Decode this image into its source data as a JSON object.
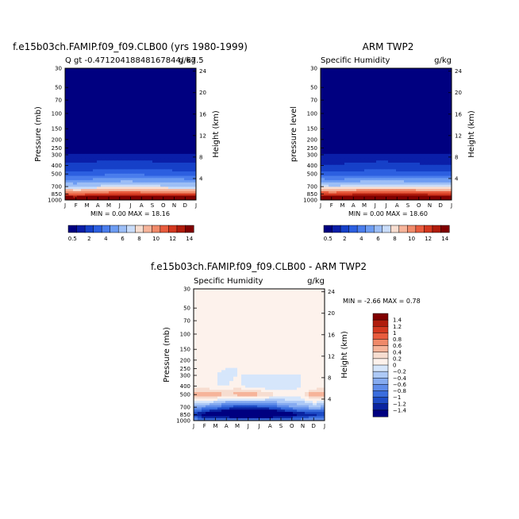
{
  "chart_data": [
    {
      "id": "model",
      "type": "heatmap",
      "title": "f.e15b03ch.FAMIP.f09_f09.CLB00 (yrs 1980-1999)",
      "subtitle_left": "Q  gt  -0.47120418848167844/ 67.5",
      "subtitle_right": "g/kg",
      "ylabel": "Pressure  (mb)",
      "y2label": "Height  (km)",
      "x_ticks": [
        "J",
        "F",
        "M",
        "A",
        "M",
        "J",
        "J",
        "A",
        "S",
        "O",
        "N",
        "D",
        "J"
      ],
      "y_ticks": [
        "30",
        "50",
        "70",
        "100",
        "150",
        "200",
        "250",
        "300",
        "400",
        "500",
        "700",
        "850",
        "1000"
      ],
      "y2_ticks": [
        "24",
        "20",
        "16",
        "12",
        "8",
        "4"
      ],
      "min_label": "MIN =",
      "min_value": "0.00",
      "max_label": "MAX =",
      "max_value": "18.16",
      "months": [
        "J",
        "F",
        "M",
        "A",
        "M",
        "J",
        "J",
        "A",
        "S",
        "O",
        "N",
        "D",
        "J"
      ],
      "pressure_levels": [
        1000,
        850,
        700,
        500,
        400,
        300,
        250,
        200,
        150,
        100,
        70,
        50,
        30
      ],
      "values_g_per_kg_approx": [
        [
          16.5,
          16.2,
          16.4,
          16.8,
          17.0,
          17.2,
          17.1,
          17.0,
          16.9,
          16.8,
          16.7,
          16.6,
          16.5
        ],
        [
          10.5,
          10.2,
          10.4,
          10.8,
          11.0,
          11.2,
          11.1,
          11.0,
          10.9,
          10.8,
          10.7,
          10.6,
          10.5
        ],
        [
          6.0,
          5.8,
          5.9,
          6.2,
          6.4,
          6.5,
          6.5,
          6.4,
          6.3,
          6.2,
          6.1,
          6.0,
          6.0
        ],
        [
          2.6,
          2.4,
          2.5,
          2.7,
          2.8,
          2.9,
          2.9,
          2.8,
          2.7,
          2.7,
          2.6,
          2.6,
          2.6
        ],
        [
          1.2,
          1.1,
          1.2,
          1.3,
          1.3,
          1.4,
          1.4,
          1.3,
          1.3,
          1.2,
          1.2,
          1.2,
          1.2
        ],
        [
          0.5,
          0.5,
          0.5,
          0.5,
          0.5,
          0.5,
          0.5,
          0.5,
          0.5,
          0.5,
          0.5,
          0.5,
          0.5
        ],
        [
          0.2,
          0.2,
          0.2,
          0.2,
          0.2,
          0.2,
          0.2,
          0.2,
          0.2,
          0.2,
          0.2,
          0.2,
          0.2
        ],
        [
          0.1,
          0.1,
          0.1,
          0.1,
          0.1,
          0.1,
          0.1,
          0.1,
          0.1,
          0.1,
          0.1,
          0.1,
          0.1
        ],
        [
          0.0,
          0.0,
          0.0,
          0.0,
          0.0,
          0.0,
          0.0,
          0.0,
          0.0,
          0.0,
          0.0,
          0.0,
          0.0
        ],
        [
          0.0,
          0.0,
          0.0,
          0.0,
          0.0,
          0.0,
          0.0,
          0.0,
          0.0,
          0.0,
          0.0,
          0.0,
          0.0
        ],
        [
          0.0,
          0.0,
          0.0,
          0.0,
          0.0,
          0.0,
          0.0,
          0.0,
          0.0,
          0.0,
          0.0,
          0.0,
          0.0
        ],
        [
          0.0,
          0.0,
          0.0,
          0.0,
          0.0,
          0.0,
          0.0,
          0.0,
          0.0,
          0.0,
          0.0,
          0.0,
          0.0
        ],
        [
          0.0,
          0.0,
          0.0,
          0.0,
          0.0,
          0.0,
          0.0,
          0.0,
          0.0,
          0.0,
          0.0,
          0.0,
          0.0
        ]
      ]
    },
    {
      "id": "obs",
      "type": "heatmap",
      "title": "ARM TWP2",
      "subtitle_left": "Specific Humidity",
      "subtitle_right": "g/kg",
      "ylabel": "pressure  level",
      "y2label": "Height  (km)",
      "x_ticks": [
        "J",
        "F",
        "M",
        "A",
        "M",
        "J",
        "J",
        "A",
        "S",
        "O",
        "N",
        "D",
        "J"
      ],
      "y_ticks": [
        "30",
        "50",
        "70",
        "100",
        "150",
        "200",
        "250",
        "300",
        "400",
        "500",
        "700",
        "850",
        "1000"
      ],
      "y2_ticks": [
        "24",
        "20",
        "16",
        "12",
        "8",
        "4"
      ],
      "min_label": "MIN =",
      "min_value": "0.00",
      "max_label": "MAX =",
      "max_value": "18.60",
      "months": [
        "J",
        "F",
        "M",
        "A",
        "M",
        "J",
        "J",
        "A",
        "S",
        "O",
        "N",
        "D",
        "J"
      ],
      "pressure_levels": [
        1000,
        850,
        700,
        500,
        400,
        300,
        250,
        200,
        150,
        100,
        70,
        50,
        30
      ],
      "values_g_per_kg_approx": [
        [
          17.0,
          16.8,
          17.0,
          17.4,
          17.6,
          17.8,
          17.7,
          17.6,
          17.5,
          17.4,
          17.3,
          17.1,
          17.0
        ],
        [
          11.2,
          11.0,
          11.1,
          11.5,
          11.7,
          11.8,
          11.8,
          11.7,
          11.6,
          11.5,
          11.4,
          11.3,
          11.2
        ],
        [
          6.4,
          6.2,
          6.3,
          6.6,
          6.8,
          6.9,
          6.9,
          6.8,
          6.7,
          6.6,
          6.5,
          6.4,
          6.4
        ],
        [
          2.4,
          2.2,
          2.3,
          2.5,
          2.6,
          2.7,
          2.7,
          2.6,
          2.5,
          2.5,
          2.4,
          2.4,
          2.4
        ],
        [
          1.1,
          1.0,
          1.1,
          1.2,
          1.2,
          1.3,
          1.3,
          1.2,
          1.2,
          1.1,
          1.1,
          1.1,
          1.1
        ],
        [
          0.5,
          0.5,
          0.5,
          0.5,
          0.5,
          0.5,
          0.5,
          0.5,
          0.5,
          0.5,
          0.5,
          0.5,
          0.5
        ],
        [
          0.2,
          0.2,
          0.2,
          0.2,
          0.2,
          0.2,
          0.2,
          0.2,
          0.2,
          0.2,
          0.2,
          0.2,
          0.2
        ],
        [
          0.1,
          0.1,
          0.1,
          0.1,
          0.1,
          0.1,
          0.1,
          0.1,
          0.1,
          0.1,
          0.1,
          0.1,
          0.1
        ],
        [
          0.0,
          0.0,
          0.0,
          0.0,
          0.0,
          0.0,
          0.0,
          0.0,
          0.0,
          0.0,
          0.0,
          0.0,
          0.0
        ],
        [
          0.0,
          0.0,
          0.0,
          0.0,
          0.0,
          0.0,
          0.0,
          0.0,
          0.0,
          0.0,
          0.0,
          0.0,
          0.0
        ],
        [
          0.0,
          0.0,
          0.0,
          0.0,
          0.0,
          0.0,
          0.0,
          0.0,
          0.0,
          0.0,
          0.0,
          0.0,
          0.0
        ],
        [
          0.0,
          0.0,
          0.0,
          0.0,
          0.0,
          0.0,
          0.0,
          0.0,
          0.0,
          0.0,
          0.0,
          0.0,
          0.0
        ],
        [
          0.0,
          0.0,
          0.0,
          0.0,
          0.0,
          0.0,
          0.0,
          0.0,
          0.0,
          0.0,
          0.0,
          0.0,
          0.0
        ]
      ]
    },
    {
      "id": "diff",
      "type": "heatmap",
      "title": "f.e15b03ch.FAMIP.f09_f09.CLB00 - ARM TWP2",
      "subtitle_left": "Specific Humidity",
      "subtitle_right": "g/kg",
      "ylabel": "Pressure  (mb)",
      "y2label": "Height  (km)",
      "x_ticks": [
        "J",
        "F",
        "M",
        "A",
        "M",
        "J",
        "J",
        "A",
        "S",
        "O",
        "N",
        "D",
        "J"
      ],
      "y_ticks": [
        "30",
        "50",
        "70",
        "100",
        "150",
        "200",
        "250",
        "300",
        "400",
        "500",
        "700",
        "850",
        "1000"
      ],
      "y2_ticks": [
        "24",
        "20",
        "16",
        "12",
        "8",
        "4"
      ],
      "min_label": "MIN =",
      "min_value": "-2.66",
      "max_label": "MAX =",
      "max_value": "0.78",
      "months": [
        "J",
        "F",
        "M",
        "A",
        "M",
        "J",
        "J",
        "A",
        "S",
        "O",
        "N",
        "D",
        "J"
      ],
      "pressure_levels": [
        1000,
        850,
        700,
        500,
        400,
        300,
        250,
        200,
        150,
        100,
        70,
        50,
        30
      ],
      "values_g_per_kg_approx": [
        [
          -0.6,
          -0.8,
          -0.7,
          -0.6,
          -0.7,
          -0.7,
          -0.6,
          -0.6,
          -0.7,
          -0.8,
          -0.6,
          -0.6,
          -0.6
        ],
        [
          -1.2,
          -1.6,
          -1.8,
          -2.0,
          -2.2,
          -2.3,
          -2.2,
          -2.1,
          -1.9,
          -1.6,
          -1.4,
          -1.3,
          -1.2
        ],
        [
          -0.5,
          -0.7,
          -0.8,
          -1.0,
          -1.2,
          -1.2,
          -1.1,
          -1.0,
          -0.8,
          -0.6,
          -0.5,
          -0.4,
          -0.5
        ],
        [
          0.5,
          0.7,
          0.6,
          0.4,
          0.5,
          0.6,
          0.5,
          0.3,
          0.2,
          0.1,
          0.2,
          0.6,
          0.5
        ],
        [
          0.1,
          0.0,
          0.0,
          0.0,
          0.1,
          -0.1,
          -0.1,
          -0.2,
          -0.2,
          -0.1,
          0.0,
          0.0,
          0.1
        ],
        [
          0.0,
          0.0,
          0.0,
          -0.1,
          0.0,
          0.0,
          0.0,
          0.0,
          0.0,
          0.0,
          0.0,
          0.0,
          0.0
        ],
        [
          0.0,
          0.2,
          0.1,
          0.0,
          0.0,
          0.0,
          0.0,
          0.0,
          0.0,
          0.0,
          0.0,
          0.0,
          0.0
        ],
        [
          0.0,
          0.1,
          0.0,
          0.0,
          0.0,
          0.0,
          0.0,
          0.0,
          0.0,
          0.0,
          0.0,
          0.0,
          0.0
        ],
        [
          0.0,
          0.0,
          0.0,
          0.0,
          0.0,
          0.0,
          0.0,
          0.0,
          0.0,
          0.0,
          0.0,
          0.0,
          0.0
        ],
        [
          0.0,
          0.0,
          0.0,
          0.0,
          0.0,
          0.0,
          0.0,
          0.0,
          0.0,
          0.0,
          0.0,
          0.0,
          0.0
        ],
        [
          0.0,
          0.0,
          0.0,
          0.0,
          0.0,
          0.0,
          0.0,
          0.0,
          0.0,
          0.0,
          0.0,
          0.0,
          0.0
        ],
        [
          0.0,
          0.0,
          0.0,
          0.0,
          0.0,
          0.0,
          0.0,
          0.0,
          0.0,
          0.0,
          0.0,
          0.0,
          0.0
        ],
        [
          0.0,
          0.0,
          0.0,
          0.0,
          0.0,
          0.0,
          0.0,
          0.0,
          0.0,
          0.0,
          0.0,
          0.0,
          0.0
        ]
      ]
    }
  ],
  "colorbar_abs": {
    "labels": [
      "0.5",
      "2",
      "4",
      "6",
      "8",
      "10",
      "12",
      "14"
    ],
    "levels": [
      0.5,
      1,
      2,
      3,
      4,
      5,
      6,
      7,
      8,
      9,
      10,
      11,
      12,
      13,
      14
    ],
    "colors": [
      "#000080",
      "#0a1ea8",
      "#1640c8",
      "#2c5fe0",
      "#4a7dec",
      "#6d9cf2",
      "#9cbef6",
      "#c9dcf9",
      "#f7ddd0",
      "#f6b49a",
      "#f08a6a",
      "#e85c3e",
      "#d3381f",
      "#b01c0c",
      "#800000"
    ]
  },
  "colorbar_diff": {
    "labels": [
      "1.4",
      "1.2",
      "1",
      "0.8",
      "0.6",
      "0.4",
      "0.2",
      "0",
      "−0.2",
      "−0.4",
      "−0.6",
      "−0.8",
      "−1",
      "−1.2",
      "−1.4"
    ],
    "levels": [
      1.4,
      1.2,
      1.0,
      0.8,
      0.6,
      0.4,
      0.2,
      0.0,
      -0.2,
      -0.4,
      -0.6,
      -0.8,
      -1.0,
      -1.2,
      -1.4
    ],
    "colors": [
      "#800000",
      "#b01c0c",
      "#d3381f",
      "#e85c3e",
      "#f08a6a",
      "#f6b49a",
      "#f7ddd0",
      "#fdf2ec",
      "#d6e6fb",
      "#adc9f6",
      "#86abf0",
      "#5f8ce9",
      "#3a6ddd",
      "#1d4bc6",
      "#0a24a0",
      "#000080"
    ]
  }
}
